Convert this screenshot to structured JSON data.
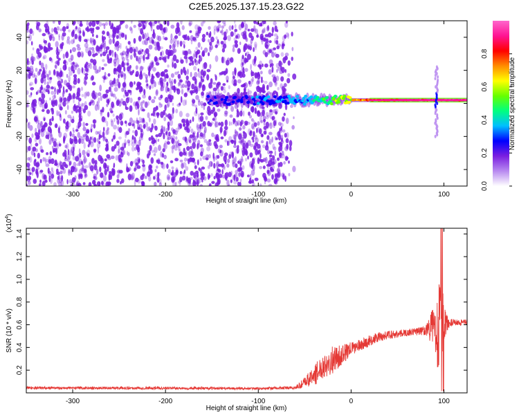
{
  "title": "C2E5.2025.137.15.23.G22",
  "colors": {
    "background": "#ffffff",
    "spectrogram_low": "#7a1fe0",
    "snr_line": "#e53935",
    "colorbar_stops": [
      "#ffffff",
      "#b889f0",
      "#7a1fe0",
      "#0000ff",
      "#00bfff",
      "#00ff7f",
      "#66ff00",
      "#ffff00",
      "#ff8c00",
      "#ff0000",
      "#ff1493",
      "#ff66cc"
    ]
  },
  "chart_data": [
    {
      "type": "heatmap",
      "xlabel": "Height of straight line (km)",
      "ylabel": "Frequency (Hz)",
      "xlim": [
        -350,
        125
      ],
      "ylim": [
        -50,
        50
      ],
      "x_ticks": [
        -300,
        -200,
        -100,
        0,
        100
      ],
      "x_tick_labels": [
        "-300",
        "-200",
        "-100",
        "0",
        "100"
      ],
      "y_ticks": [
        -40,
        -20,
        0,
        20,
        40
      ],
      "y_tick_labels": [
        "-40",
        "-20",
        "0",
        "20",
        "40"
      ],
      "noise_region": {
        "x_from": -350,
        "x_to": -80,
        "amplitude": 0.15
      },
      "signal_band": {
        "frequency": 2,
        "x_from": -155,
        "x_to": 125,
        "profile": [
          [
            -155,
            0.22
          ],
          [
            -120,
            0.3
          ],
          [
            -80,
            0.35
          ],
          [
            -40,
            0.42
          ],
          [
            -10,
            0.6
          ],
          [
            20,
            0.85
          ],
          [
            60,
            0.95
          ],
          [
            125,
            0.97
          ]
        ]
      },
      "spike": {
        "x": 92,
        "freq_from": -20,
        "freq_to": 22
      },
      "colorbar": {
        "label": "Normalized spectral amplitude",
        "range": [
          0,
          1
        ],
        "ticks": [
          0.0,
          0.2,
          0.4,
          0.6,
          0.8
        ],
        "tick_labels": [
          "0.0",
          "0.2",
          "0.4",
          "0.6",
          "0.8"
        ]
      }
    },
    {
      "type": "line",
      "xlabel": "Height of straight line (km)",
      "ylabel": "SNR (10 * v/v)",
      "scale_label": "(x10",
      "scale_exp": "4",
      "scale_close": ")",
      "xlim": [
        -350,
        125
      ],
      "ylim": [
        0,
        14500
      ],
      "x_ticks": [
        -300,
        -200,
        -100,
        0,
        100
      ],
      "x_tick_labels": [
        "-300",
        "-200",
        "-100",
        "0",
        "100"
      ],
      "y_ticks": [
        2000,
        4000,
        6000,
        8000,
        10000,
        12000,
        14000
      ],
      "y_tick_labels": [
        "0.2",
        "0.4",
        "0.6",
        "0.8",
        "1.0",
        "1.2",
        "1.4"
      ],
      "series": [
        {
          "color": "#e53935",
          "x": [
            -350,
            -300,
            -250,
            -200,
            -150,
            -100,
            -60,
            -50,
            -40,
            -30,
            -20,
            -10,
            0,
            10,
            20,
            30,
            40,
            50,
            60,
            70,
            80,
            85,
            90,
            95,
            98,
            100,
            105,
            110,
            125
          ],
          "y": [
            450,
            420,
            430,
            420,
            400,
            380,
            450,
            900,
            1500,
            2400,
            2900,
            3300,
            3900,
            4200,
            4600,
            4900,
            5100,
            5200,
            5300,
            5400,
            5500,
            5700,
            5900,
            5400,
            6400,
            6200,
            6100,
            6200,
            6200
          ],
          "noise": [
            120,
            120,
            120,
            120,
            120,
            100,
            150,
            500,
            900,
            1100,
            1200,
            900,
            600,
            500,
            500,
            450,
            400,
            350,
            300,
            350,
            400,
            1200,
            2000,
            4500,
            4000,
            1500,
            400,
            300,
            250
          ]
        }
      ]
    }
  ]
}
